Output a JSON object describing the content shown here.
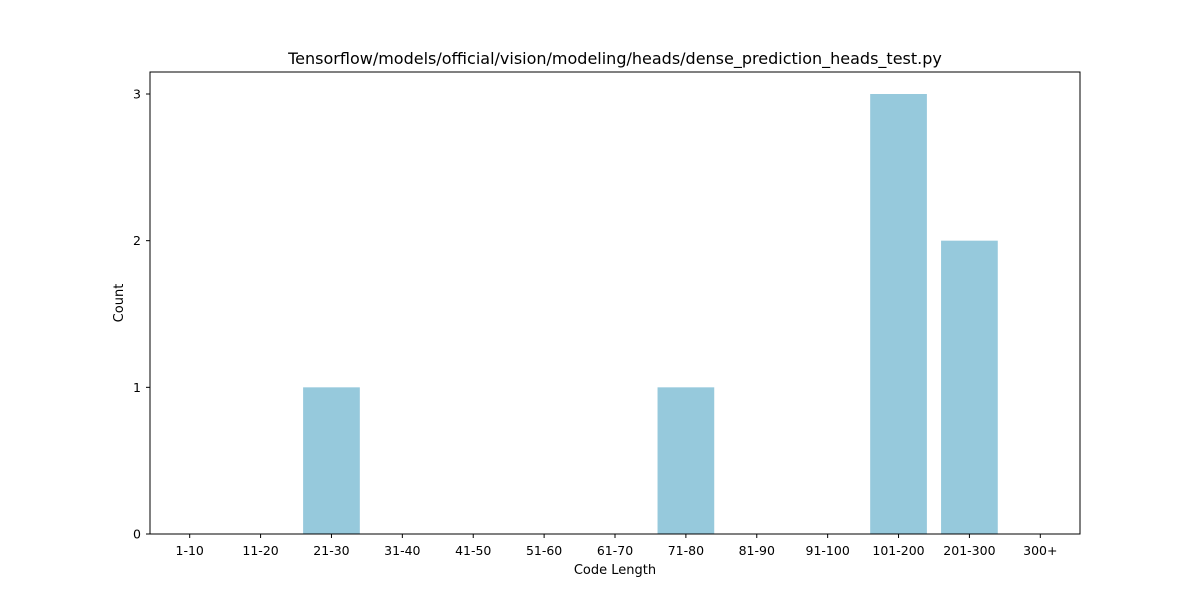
{
  "chart_data": {
    "type": "bar",
    "title": "Tensorflow/models/official/vision/modeling/heads/dense_prediction_heads_test.py",
    "xlabel": "Code Length",
    "ylabel": "Count",
    "categories": [
      "1-10",
      "11-20",
      "21-30",
      "31-40",
      "41-50",
      "51-60",
      "61-70",
      "71-80",
      "81-90",
      "91-100",
      "101-200",
      "201-300",
      "300+"
    ],
    "values": [
      0,
      0,
      1,
      0,
      0,
      0,
      0,
      1,
      0,
      0,
      3,
      2,
      0
    ],
    "ylim": [
      0,
      3.15
    ],
    "yticks": [
      0,
      1,
      2,
      3
    ],
    "bar_color": "#96c9dc",
    "grid": false,
    "legend": "none"
  }
}
